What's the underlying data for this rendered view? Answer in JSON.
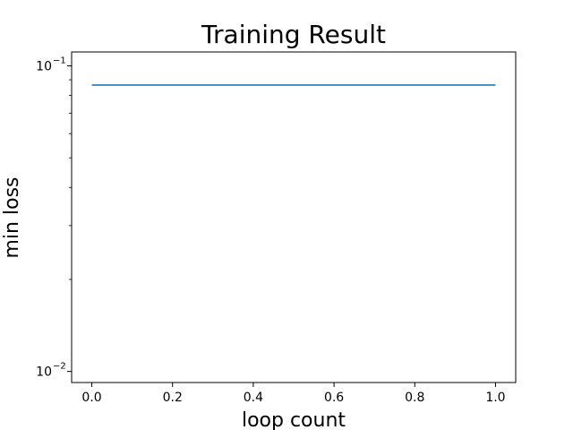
{
  "chart_data": {
    "type": "line",
    "title": "Training Result",
    "xlabel": "loop count",
    "ylabel": "min loss",
    "yscale": "log",
    "xlim": [
      -0.05,
      1.05
    ],
    "ylim": [
      0.0092,
      0.111
    ],
    "grid": false,
    "x_ticks": [
      {
        "value": 0.0,
        "label": "0.0"
      },
      {
        "value": 0.2,
        "label": "0.2"
      },
      {
        "value": 0.4,
        "label": "0.4"
      },
      {
        "value": 0.6,
        "label": "0.6"
      },
      {
        "value": 0.8,
        "label": "0.8"
      },
      {
        "value": 1.0,
        "label": "1.0"
      }
    ],
    "y_ticks": [
      {
        "value": 0.01,
        "base": "10",
        "exponent": "−2"
      },
      {
        "value": 0.1,
        "base": "10",
        "exponent": "−1"
      }
    ],
    "series": [
      {
        "color": "#1f77b4",
        "x": [
          0.0,
          1.0
        ],
        "y": [
          0.0865,
          0.0865
        ]
      }
    ]
  }
}
